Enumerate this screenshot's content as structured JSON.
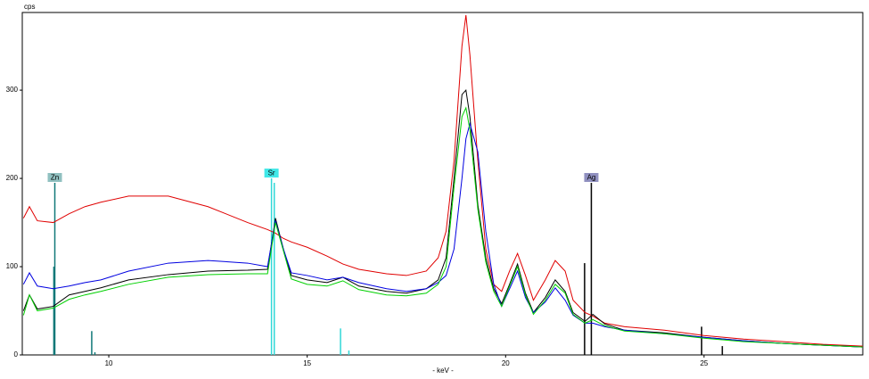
{
  "chart_data": {
    "type": "line",
    "ylabel": "cps",
    "xlabel": "- keV -",
    "xlim": [
      7.82,
      29.0
    ],
    "ylim": [
      0,
      388
    ],
    "xticks": [
      10,
      15,
      20,
      25
    ],
    "yticks": [
      0,
      100,
      200,
      300
    ],
    "x": [
      7.85,
      8.0,
      8.2,
      8.6,
      9.0,
      9.4,
      9.8,
      10.5,
      11.5,
      12.5,
      13.5,
      14.0,
      14.2,
      14.4,
      14.6,
      15.0,
      15.5,
      15.9,
      16.3,
      17.0,
      17.5,
      18.0,
      18.3,
      18.5,
      18.7,
      18.9,
      19.0,
      19.1,
      19.3,
      19.5,
      19.7,
      19.9,
      20.1,
      20.3,
      20.5,
      20.7,
      21.0,
      21.25,
      21.5,
      21.7,
      22.0,
      22.2,
      22.5,
      23.0,
      24.0,
      25.0,
      26.0,
      27.0,
      28.0,
      29.0
    ],
    "series": [
      {
        "color": "#e00000",
        "values": [
          155,
          168,
          152,
          150,
          160,
          168,
          173,
          180,
          180,
          168,
          150,
          142,
          138,
          132,
          128,
          122,
          112,
          103,
          97,
          92,
          90,
          95,
          110,
          140,
          220,
          350,
          385,
          340,
          220,
          120,
          80,
          72,
          95,
          115,
          90,
          62,
          85,
          107,
          95,
          62,
          48,
          44,
          36,
          32,
          28,
          22,
          18,
          15,
          12,
          10
        ]
      },
      {
        "color": "#000000",
        "values": [
          50,
          68,
          52,
          55,
          68,
          72,
          76,
          85,
          91,
          95,
          96,
          97,
          155,
          120,
          90,
          85,
          82,
          88,
          78,
          72,
          70,
          75,
          85,
          110,
          200,
          295,
          300,
          270,
          170,
          110,
          75,
          58,
          80,
          103,
          70,
          48,
          65,
          85,
          72,
          48,
          38,
          46,
          35,
          28,
          25,
          20,
          16,
          13,
          11,
          9
        ]
      },
      {
        "color": "#0000e0",
        "values": [
          80,
          93,
          78,
          75,
          78,
          82,
          85,
          95,
          104,
          107,
          104,
          100,
          152,
          120,
          93,
          90,
          85,
          88,
          82,
          75,
          72,
          75,
          82,
          90,
          120,
          200,
          245,
          262,
          230,
          140,
          80,
          55,
          75,
          95,
          65,
          48,
          60,
          76,
          62,
          45,
          36,
          36,
          32,
          28,
          24,
          20,
          16,
          13,
          11,
          9
        ]
      },
      {
        "color": "#00d000",
        "values": [
          45,
          68,
          50,
          53,
          63,
          68,
          72,
          80,
          88,
          91,
          92,
          92,
          150,
          118,
          86,
          80,
          78,
          84,
          74,
          68,
          67,
          70,
          80,
          100,
          190,
          270,
          280,
          255,
          165,
          105,
          72,
          55,
          78,
          100,
          68,
          46,
          62,
          80,
          70,
          46,
          36,
          40,
          33,
          27,
          24,
          19,
          15,
          13,
          11,
          9
        ]
      }
    ],
    "markers": [
      {
        "name": "Zn",
        "color": "#107878",
        "label_color": "#90c0c0",
        "x": [
          8.615,
          8.64,
          9.57,
          9.65
        ],
        "values": [
          100,
          195,
          27,
          3
        ]
      },
      {
        "name": "Sr",
        "color": "#30d8d8",
        "label_color": "#40e8e8",
        "x": [
          14.1,
          14.17,
          15.84,
          16.05
        ],
        "values": [
          200,
          195,
          30,
          5
        ]
      },
      {
        "name": "Ag",
        "color": "#000000",
        "label_color": "#9090c0",
        "x": [
          21.99,
          22.16,
          24.94,
          25.46
        ],
        "values": [
          104,
          195,
          32,
          10
        ]
      }
    ]
  }
}
